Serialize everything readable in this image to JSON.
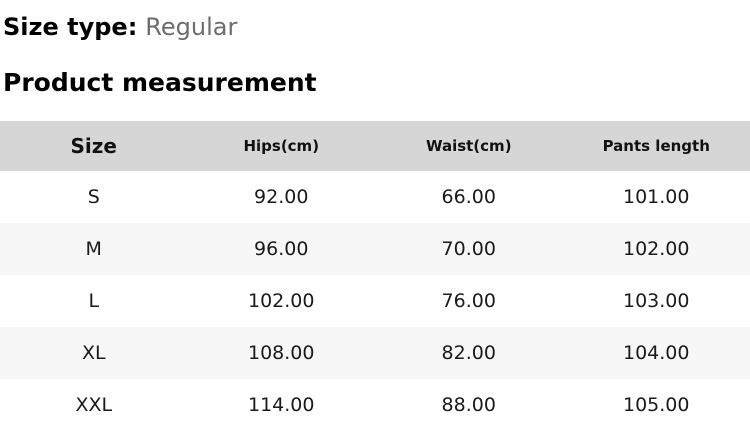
{
  "size_type": {
    "label": "Size type:",
    "value": "Regular"
  },
  "section_title": "Product measurement",
  "table": {
    "columns": [
      "Size",
      "Hips(cm)",
      "Waist(cm)",
      "Pants length"
    ],
    "rows": [
      {
        "size": "S",
        "hips": "92.00",
        "waist": "66.00",
        "pants_length": "101.00"
      },
      {
        "size": "M",
        "hips": "96.00",
        "waist": "70.00",
        "pants_length": "102.00"
      },
      {
        "size": "L",
        "hips": "102.00",
        "waist": "76.00",
        "pants_length": "103.00"
      },
      {
        "size": "XL",
        "hips": "108.00",
        "waist": "82.00",
        "pants_length": "104.00"
      },
      {
        "size": "XXL",
        "hips": "114.00",
        "waist": "88.00",
        "pants_length": "105.00"
      }
    ]
  },
  "colors": {
    "header_bg": "#d6d6d6",
    "alt_row_bg": "#f7f7f7",
    "muted_text": "#6d6d6d",
    "text": "#1a1a1a"
  }
}
